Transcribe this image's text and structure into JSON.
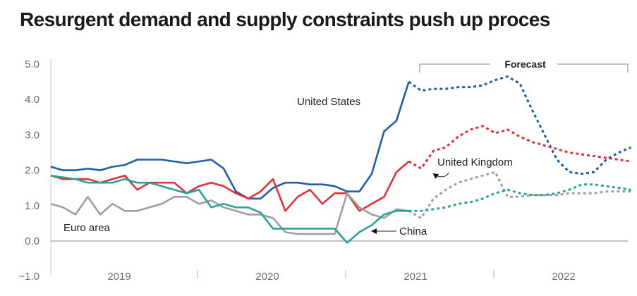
{
  "title": "Resurgent demand and supply constraints push up proces",
  "chart_data": {
    "type": "line",
    "title": "Resurgent demand and supply constraints push up proces",
    "xlabel": "",
    "ylabel": "",
    "ylim": [
      -1.0,
      5.0
    ],
    "yticks": [
      5.0,
      4.0,
      3.0,
      2.0,
      1.0,
      0.0,
      -1.0
    ],
    "ytick_labels": [
      "5.0",
      "4.0",
      "3.0",
      "2.0",
      "1.0",
      "0.0",
      "−1.0"
    ],
    "x_start": "2019-01",
    "x_frequency": "monthly",
    "year_labels": [
      "2019",
      "2020",
      "2021",
      "2022"
    ],
    "grid": false,
    "forecast_start_index": 30,
    "forecast_label": "Forecast",
    "series": [
      {
        "name": "United States",
        "color": "#1f5fa6",
        "values": [
          2.1,
          2.0,
          2.0,
          2.05,
          2.0,
          2.1,
          2.15,
          2.3,
          2.3,
          2.3,
          2.25,
          2.2,
          2.25,
          2.3,
          2.05,
          1.4,
          1.2,
          1.2,
          1.5,
          1.65,
          1.65,
          1.6,
          1.6,
          1.55,
          1.4,
          1.4,
          1.9,
          3.1,
          3.4,
          4.5,
          4.25,
          4.3,
          4.3,
          4.35,
          4.35,
          4.4,
          4.55,
          4.65,
          4.45,
          3.7,
          3.0,
          2.3,
          1.95,
          1.9,
          1.95,
          2.3,
          2.5,
          2.65
        ]
      },
      {
        "name": "United Kingdom",
        "color": "#e03039",
        "values": [
          1.85,
          1.75,
          1.75,
          1.75,
          1.65,
          1.75,
          1.85,
          1.45,
          1.65,
          1.65,
          1.65,
          1.35,
          1.55,
          1.65,
          1.55,
          1.35,
          1.2,
          1.4,
          1.75,
          0.85,
          1.25,
          1.45,
          1.05,
          1.35,
          1.35,
          0.85,
          1.05,
          1.25,
          1.95,
          2.25,
          2.05,
          2.55,
          2.65,
          2.95,
          3.15,
          3.25,
          3.05,
          3.15,
          2.95,
          2.8,
          2.7,
          2.6,
          2.5,
          2.45,
          2.4,
          2.35,
          2.3,
          2.25
        ]
      },
      {
        "name": "Euro area",
        "color": "#9e9e9e",
        "values": [
          1.05,
          0.95,
          0.75,
          1.25,
          0.75,
          1.05,
          0.85,
          0.85,
          0.95,
          1.05,
          1.25,
          1.25,
          1.05,
          1.15,
          0.95,
          0.85,
          0.75,
          0.75,
          0.65,
          0.25,
          0.2,
          0.2,
          0.2,
          0.2,
          1.35,
          0.95,
          0.75,
          0.65,
          0.9,
          0.85,
          0.65,
          1.2,
          1.45,
          1.65,
          1.75,
          1.85,
          1.95,
          1.25,
          1.25,
          1.3,
          1.3,
          1.3,
          1.35,
          1.35,
          1.35,
          1.4,
          1.4,
          1.4
        ]
      },
      {
        "name": "China",
        "color": "#2aa39a",
        "values": [
          1.85,
          1.8,
          1.75,
          1.65,
          1.65,
          1.65,
          1.75,
          1.65,
          1.65,
          1.55,
          1.45,
          1.35,
          1.45,
          0.95,
          1.05,
          0.95,
          0.95,
          0.8,
          0.35,
          0.35,
          0.35,
          0.35,
          0.35,
          0.35,
          -0.05,
          0.25,
          0.45,
          0.75,
          0.85,
          0.85,
          0.85,
          0.9,
          0.95,
          1.05,
          1.1,
          1.2,
          1.35,
          1.45,
          1.35,
          1.3,
          1.3,
          1.35,
          1.45,
          1.6,
          1.6,
          1.55,
          1.5,
          1.45
        ]
      }
    ],
    "annotations": [
      {
        "text": "United States",
        "series": "United States"
      },
      {
        "text": "United Kingdom",
        "series": "United Kingdom",
        "arrow": true
      },
      {
        "text": "Euro area",
        "series": "Euro area"
      },
      {
        "text": "China",
        "series": "China",
        "arrow": true
      }
    ]
  }
}
